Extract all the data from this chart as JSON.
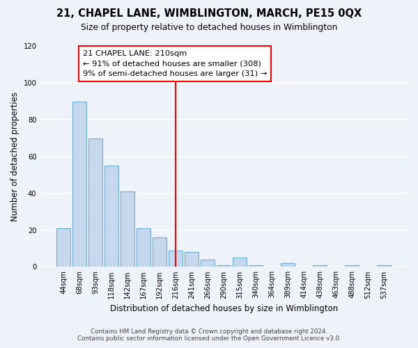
{
  "title": "21, CHAPEL LANE, WIMBLINGTON, MARCH, PE15 0QX",
  "subtitle": "Size of property relative to detached houses in Wimblington",
  "xlabel": "Distribution of detached houses by size in Wimblington",
  "ylabel": "Number of detached properties",
  "bar_labels": [
    "44sqm",
    "68sqm",
    "93sqm",
    "118sqm",
    "142sqm",
    "167sqm",
    "192sqm",
    "216sqm",
    "241sqm",
    "266sqm",
    "290sqm",
    "315sqm",
    "340sqm",
    "364sqm",
    "389sqm",
    "414sqm",
    "438sqm",
    "463sqm",
    "488sqm",
    "512sqm",
    "537sqm"
  ],
  "bar_values": [
    21,
    90,
    70,
    55,
    41,
    21,
    16,
    9,
    8,
    4,
    1,
    5,
    1,
    0,
    2,
    0,
    1,
    0,
    1,
    0,
    1
  ],
  "bar_color": "#c5d8ed",
  "bar_edge_color": "#6aaed6",
  "property_line_x": 7,
  "annotation_title": "21 CHAPEL LANE: 210sqm",
  "annotation_line1": "← 91% of detached houses are smaller (308)",
  "annotation_line2": "9% of semi-detached houses are larger (31) →",
  "footer_line1": "Contains HM Land Registry data © Crown copyright and database right 2024.",
  "footer_line2": "Contains public sector information licensed under the Open Government Licence v3.0.",
  "bg_color": "#eef2f9",
  "plot_bg_color": "#eef2f9",
  "ylim": [
    0,
    120
  ],
  "yticks": [
    0,
    20,
    40,
    60,
    80,
    100,
    120
  ]
}
